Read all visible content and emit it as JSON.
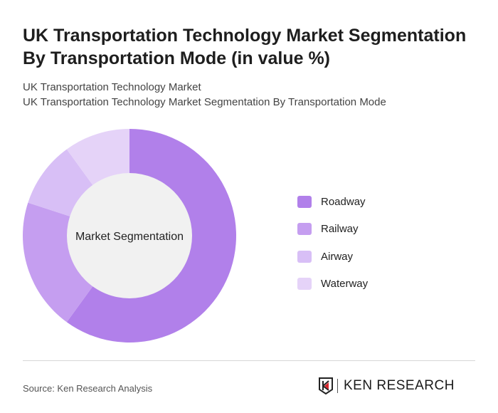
{
  "title": "UK Transportation Technology Market Segmentation By Transportation Mode (in value %)",
  "subtitle_1": "UK Transportation Technology Market",
  "subtitle_2": "UK Transportation Technology Market Segmentation By Transportation Mode",
  "source": "Source: Ken Research Analysis",
  "logo_text": "KEN RESEARCH",
  "chart_data": {
    "type": "pie",
    "variant": "donut",
    "center_label": "Market Segmentation",
    "categories": [
      "Roadway",
      "Railway",
      "Airway",
      "Waterway"
    ],
    "values": [
      60,
      20,
      10,
      10
    ],
    "colors": [
      "#b180ea",
      "#c59ef0",
      "#d8bff6",
      "#e5d3f8"
    ],
    "legend_position": "right"
  }
}
